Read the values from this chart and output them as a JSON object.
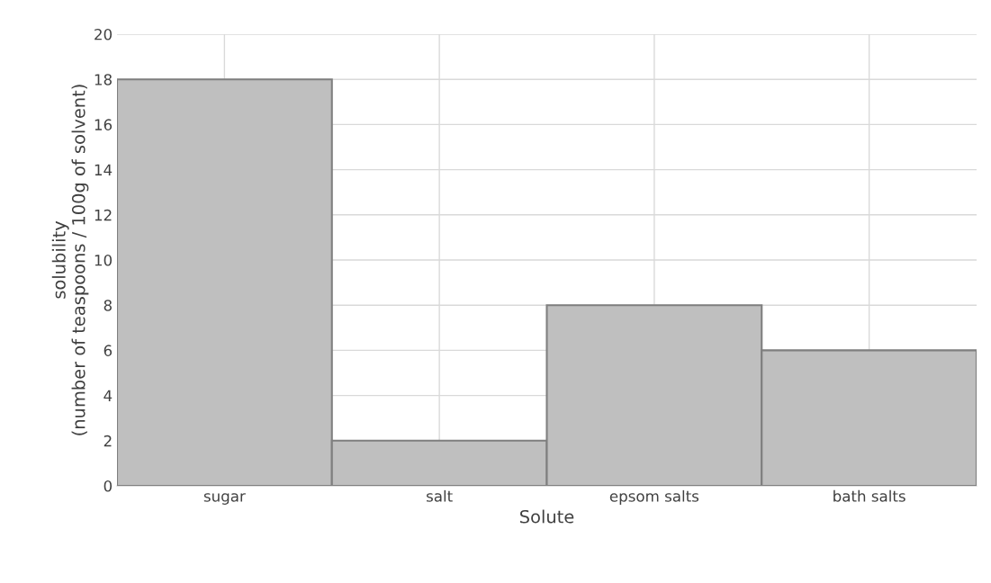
{
  "chart_data": {
    "type": "bar",
    "xlabel": "Solute",
    "ylabel": "solubility\n(number of teaspoons / 100g of solvent)",
    "categories": [
      "sugar",
      "salt",
      "epsom salts",
      "bath salts"
    ],
    "values": [
      18,
      2,
      8,
      6
    ],
    "color": "#bfbfbf",
    "ylim": [
      0,
      20
    ],
    "yticks": [
      0,
      2,
      4,
      6,
      8,
      10,
      12,
      14,
      16,
      18,
      20
    ],
    "grid": true
  }
}
